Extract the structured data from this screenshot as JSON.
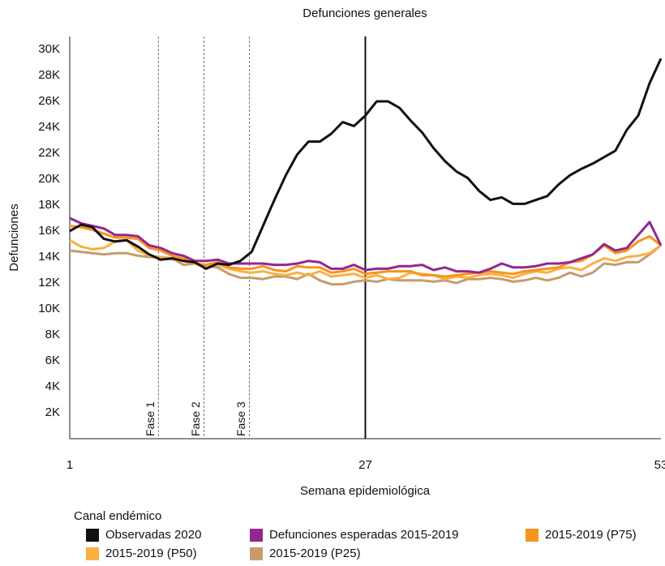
{
  "chart_data": {
    "type": "line",
    "title": "Defunciones generales",
    "x_label": "Semana epidemiológica",
    "y_label": "Defunciones",
    "legend_title": "Canal endémico",
    "x": [
      1,
      2,
      3,
      4,
      5,
      6,
      7,
      8,
      9,
      10,
      11,
      12,
      13,
      14,
      15,
      16,
      17,
      18,
      19,
      20,
      21,
      22,
      23,
      24,
      25,
      26,
      27,
      28,
      29,
      30,
      31,
      32,
      33,
      34,
      35,
      36,
      37,
      38,
      39,
      40,
      41,
      42,
      43,
      44,
      45,
      46,
      47,
      48,
      49,
      50,
      51,
      52,
      53
    ],
    "xlim": [
      1,
      53
    ],
    "xticks": [
      1,
      27,
      53
    ],
    "ylim": [
      0,
      31000
    ],
    "yticks": [
      {
        "value": 2000,
        "label": "2K"
      },
      {
        "value": 4000,
        "label": "4K"
      },
      {
        "value": 6000,
        "label": "6K"
      },
      {
        "value": 8000,
        "label": "8K"
      },
      {
        "value": 10000,
        "label": "10K"
      },
      {
        "value": 12000,
        "label": "12K"
      },
      {
        "value": 14000,
        "label": "14K"
      },
      {
        "value": 16000,
        "label": "16K"
      },
      {
        "value": 18000,
        "label": "18K"
      },
      {
        "value": 20000,
        "label": "20K"
      },
      {
        "value": 22000,
        "label": "22K"
      },
      {
        "value": 24000,
        "label": "24K"
      },
      {
        "value": 26000,
        "label": "26K"
      },
      {
        "value": 28000,
        "label": "28K"
      },
      {
        "value": 30000,
        "label": "30K"
      }
    ],
    "grid": false,
    "reference_line_x": 27,
    "annotations": [
      {
        "text": "Fase 1",
        "x": 8.8
      },
      {
        "text": "Fase 2",
        "x": 12.8
      },
      {
        "text": "Fase 3",
        "x": 16.8
      }
    ],
    "series": [
      {
        "name": "Observadas 2020",
        "color": "#111111",
        "values": [
          16000,
          16500,
          16300,
          15400,
          15200,
          15300,
          14800,
          14200,
          13800,
          13900,
          13700,
          13600,
          13100,
          13500,
          13400,
          13700,
          14400,
          16400,
          18400,
          20300,
          21900,
          22900,
          22900,
          23500,
          24400,
          24100,
          24900,
          26000,
          26000,
          25500,
          24500,
          23600,
          22400,
          21400,
          20600,
          20100,
          19100,
          18400,
          18600,
          18100,
          18100,
          18400,
          18700,
          19600,
          20300,
          20800,
          21200,
          21700,
          22200,
          23800,
          24900,
          27400,
          29300
        ]
      },
      {
        "name": "Defunciones esperadas 2015-2019",
        "color": "#93278f",
        "values": [
          17000,
          16600,
          16400,
          16200,
          15700,
          15700,
          15600,
          14900,
          14700,
          14300,
          14100,
          13700,
          13700,
          13800,
          13500,
          13500,
          13500,
          13500,
          13400,
          13400,
          13500,
          13700,
          13600,
          13100,
          13100,
          13400,
          13000,
          13100,
          13100,
          13300,
          13300,
          13400,
          13000,
          13200,
          12900,
          12900,
          12800,
          13100,
          13500,
          13200,
          13200,
          13300,
          13500,
          13500,
          13600,
          13900,
          14200,
          15000,
          14500,
          14700,
          15700,
          16700,
          14900
        ]
      },
      {
        "name": "2015-2019 (P75)",
        "color": "#f7941d",
        "values": [
          16400,
          16300,
          16100,
          15800,
          15500,
          15500,
          15400,
          14700,
          14500,
          14100,
          13900,
          13500,
          13400,
          13600,
          13200,
          13100,
          13100,
          13300,
          13000,
          12900,
          13300,
          13200,
          13200,
          12800,
          12900,
          13100,
          12700,
          12800,
          12900,
          12900,
          12900,
          12600,
          12600,
          12500,
          12600,
          12700,
          12800,
          12900,
          12800,
          12700,
          12900,
          13000,
          13100,
          13200,
          13600,
          13700,
          14200,
          14900,
          14300,
          14500,
          15200,
          15600,
          14900
        ]
      },
      {
        "name": "2015-2019 (P50)",
        "color": "#fbb040",
        "values": [
          15300,
          14800,
          14600,
          14700,
          15200,
          15300,
          14500,
          14100,
          14000,
          13800,
          13700,
          13500,
          13200,
          13400,
          13100,
          12900,
          12800,
          12900,
          12700,
          12600,
          12800,
          12600,
          12900,
          12500,
          12600,
          12700,
          12400,
          12600,
          12300,
          12400,
          12800,
          12700,
          12600,
          12300,
          12500,
          12400,
          12600,
          12700,
          12600,
          12400,
          12700,
          12900,
          12800,
          13100,
          13200,
          13000,
          13500,
          13900,
          13700,
          14000,
          14100,
          14300,
          14900
        ]
      },
      {
        "name": "2015-2019 (P25)",
        "color": "#c69c6d",
        "values": [
          14500,
          14400,
          14300,
          14200,
          14300,
          14300,
          14100,
          14000,
          14000,
          13900,
          13400,
          13500,
          13300,
          13200,
          12700,
          12400,
          12400,
          12300,
          12500,
          12500,
          12300,
          12700,
          12200,
          11900,
          11900,
          12100,
          12200,
          12100,
          12300,
          12200,
          12200,
          12200,
          12100,
          12200,
          12000,
          12300,
          12300,
          12400,
          12300,
          12100,
          12200,
          12400,
          12200,
          12400,
          12800,
          12500,
          12800,
          13500,
          13400,
          13600,
          13600,
          14200,
          14900
        ]
      }
    ]
  }
}
